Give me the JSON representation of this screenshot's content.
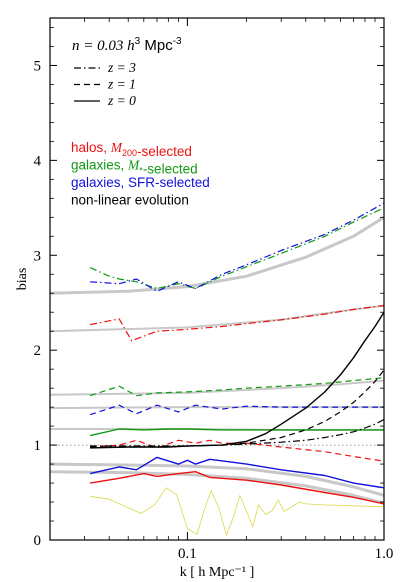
{
  "chart_data": {
    "type": "line",
    "xscale": "log",
    "xlim": [
      0.02,
      1.0
    ],
    "ylim": [
      0,
      5.5
    ],
    "x_ticks": [
      {
        "value": 0.1,
        "label": "0.1"
      },
      {
        "value": 1.0,
        "label": "1.0"
      }
    ],
    "y_ticks": [
      {
        "value": 0,
        "label": "0"
      },
      {
        "value": 1,
        "label": "1"
      },
      {
        "value": 2,
        "label": "2"
      },
      {
        "value": 3,
        "label": "3"
      },
      {
        "value": 4,
        "label": "4"
      },
      {
        "value": 5,
        "label": "5"
      }
    ],
    "xlabel": "k [ h Mpc⁻¹ ]",
    "ylabel": "bias",
    "reference_line": {
      "y": 1.0,
      "style": "dotted",
      "color": "#999999"
    },
    "legend": {
      "density": {
        "prefix": "n = 0.03 ",
        "h_exp": "3",
        "suffix": " Mpc",
        "exp": "-3"
      },
      "linestyles": [
        {
          "style": "dashdot",
          "label": "z = 3"
        },
        {
          "style": "dashed",
          "label": "z = 1"
        },
        {
          "style": "solid",
          "label": "z = 0"
        }
      ],
      "colors": [
        {
          "color": "#ee1111",
          "prefix": "halos, ",
          "ital": "M",
          "sub": "200",
          "suffix": "-selected"
        },
        {
          "color": "#119911",
          "prefix": "galaxies, ",
          "ital": "M",
          "sub": "*",
          "suffix": "-selected"
        },
        {
          "color": "#1111dd",
          "prefix": "galaxies, SFR-selected",
          "ital": "",
          "sub": "",
          "suffix": ""
        },
        {
          "color": "#000000",
          "prefix": "non-linear evolution",
          "ital": "",
          "sub": "",
          "suffix": ""
        }
      ]
    },
    "colors": {
      "halos": "#ee1111",
      "mstar": "#119911",
      "sfr": "#1111dd",
      "nonlinear": "#000000",
      "fit": "#c8c8c8",
      "bao": "#d9d94a"
    },
    "series": [
      {
        "group": "fit",
        "width": 3,
        "style": "solid",
        "x": [
          0.02,
          0.05,
          0.1,
          0.2,
          0.4,
          0.7,
          1.0
        ],
        "y": [
          2.6,
          2.62,
          2.67,
          2.78,
          2.98,
          3.2,
          3.4
        ]
      },
      {
        "group": "fit",
        "width": 2,
        "style": "solid",
        "x": [
          0.02,
          0.1,
          0.3,
          0.6,
          1.0
        ],
        "y": [
          2.2,
          2.24,
          2.32,
          2.41,
          2.47
        ]
      },
      {
        "group": "fit",
        "width": 2,
        "style": "solid",
        "x": [
          0.02,
          0.1,
          0.3,
          0.6,
          1.0
        ],
        "y": [
          1.53,
          1.55,
          1.6,
          1.64,
          1.68
        ]
      },
      {
        "group": "fit",
        "width": 2,
        "style": "solid",
        "x": [
          0.02,
          0.1,
          0.3,
          0.6,
          1.0
        ],
        "y": [
          1.39,
          1.4,
          1.4,
          1.4,
          1.4
        ]
      },
      {
        "group": "fit",
        "width": 2,
        "style": "solid",
        "x": [
          0.02,
          0.1,
          0.3,
          0.6,
          1.0
        ],
        "y": [
          1.17,
          1.17,
          1.16,
          1.16,
          1.16
        ]
      },
      {
        "group": "fit",
        "width": 3,
        "style": "solid",
        "x": [
          0.02,
          0.05,
          0.1,
          0.2,
          0.4,
          0.7,
          1.0
        ],
        "y": [
          0.8,
          0.79,
          0.78,
          0.75,
          0.67,
          0.56,
          0.47
        ]
      },
      {
        "group": "fit",
        "width": 3,
        "style": "solid",
        "x": [
          0.02,
          0.05,
          0.1,
          0.2,
          0.4,
          0.7,
          1.0
        ],
        "y": [
          0.72,
          0.71,
          0.69,
          0.65,
          0.57,
          0.47,
          0.39
        ]
      },
      {
        "group": "bao",
        "width": 0.8,
        "style": "solid",
        "x": [
          0.032,
          0.04,
          0.05,
          0.058,
          0.068,
          0.078,
          0.088,
          0.1,
          0.112,
          0.122,
          0.132,
          0.145,
          0.158,
          0.172,
          0.185,
          0.2,
          0.215,
          0.23,
          0.25,
          0.27,
          0.29,
          0.31,
          0.34,
          0.37,
          0.4,
          0.5,
          0.7,
          1.0
        ],
        "y": [
          0.46,
          0.43,
          0.34,
          0.28,
          0.37,
          0.55,
          0.48,
          0.12,
          0.06,
          0.32,
          0.52,
          0.33,
          0.05,
          0.25,
          0.47,
          0.3,
          0.14,
          0.37,
          0.27,
          0.31,
          0.42,
          0.3,
          0.35,
          0.4,
          0.38,
          0.37,
          0.36,
          0.35
        ]
      },
      {
        "group": "halos",
        "z": 3,
        "width": 1.2,
        "style": "dashdot",
        "x": [
          0.032,
          0.045,
          0.052,
          0.07,
          0.1,
          0.15,
          0.2,
          0.3,
          0.5,
          0.7,
          1.0
        ],
        "y": [
          2.27,
          2.33,
          2.1,
          2.2,
          2.22,
          2.25,
          2.28,
          2.32,
          2.38,
          2.43,
          2.47
        ]
      },
      {
        "group": "halos",
        "z": 1,
        "width": 1.2,
        "style": "dashed",
        "x": [
          0.032,
          0.045,
          0.055,
          0.07,
          0.09,
          0.11,
          0.13,
          0.15,
          0.2,
          0.3,
          0.5,
          0.7,
          1.0
        ],
        "y": [
          0.98,
          1.0,
          1.05,
          0.97,
          1.05,
          1.02,
          1.05,
          1.02,
          1.02,
          0.98,
          0.93,
          0.88,
          0.83
        ]
      },
      {
        "group": "halos",
        "z": 0,
        "width": 1.4,
        "style": "solid",
        "x": [
          0.032,
          0.045,
          0.06,
          0.07,
          0.09,
          0.11,
          0.13,
          0.2,
          0.3,
          0.5,
          0.7,
          1.0
        ],
        "y": [
          0.6,
          0.65,
          0.7,
          0.67,
          0.7,
          0.72,
          0.66,
          0.63,
          0.58,
          0.5,
          0.45,
          0.38
        ]
      },
      {
        "group": "mstar",
        "z": 3,
        "width": 1.2,
        "style": "dashdot",
        "x": [
          0.032,
          0.04,
          0.045,
          0.055,
          0.07,
          0.09,
          0.11,
          0.15,
          0.2,
          0.3,
          0.5,
          0.7,
          1.0
        ],
        "y": [
          2.87,
          2.78,
          2.75,
          2.72,
          2.65,
          2.7,
          2.65,
          2.78,
          2.88,
          3.02,
          3.2,
          3.35,
          3.5
        ]
      },
      {
        "group": "mstar",
        "z": 1,
        "width": 1.2,
        "style": "dashed",
        "x": [
          0.032,
          0.045,
          0.055,
          0.07,
          0.1,
          0.15,
          0.2,
          0.3,
          0.5,
          0.7,
          1.0
        ],
        "y": [
          1.52,
          1.62,
          1.52,
          1.55,
          1.56,
          1.58,
          1.6,
          1.62,
          1.65,
          1.68,
          1.71
        ]
      },
      {
        "group": "mstar",
        "z": 0,
        "width": 1.4,
        "style": "solid",
        "x": [
          0.032,
          0.045,
          0.06,
          0.08,
          0.1,
          0.15,
          0.2,
          0.3,
          0.5,
          0.7,
          1.0
        ],
        "y": [
          1.1,
          1.17,
          1.16,
          1.17,
          1.17,
          1.16,
          1.16,
          1.16,
          1.16,
          1.16,
          1.16
        ]
      },
      {
        "group": "sfr",
        "z": 3,
        "width": 1.2,
        "style": "dashdot",
        "x": [
          0.032,
          0.045,
          0.055,
          0.07,
          0.09,
          0.11,
          0.15,
          0.2,
          0.3,
          0.5,
          0.7,
          1.0
        ],
        "y": [
          2.72,
          2.7,
          2.75,
          2.62,
          2.72,
          2.65,
          2.8,
          2.9,
          3.05,
          3.22,
          3.37,
          3.55
        ]
      },
      {
        "group": "sfr",
        "z": 1,
        "width": 1.2,
        "style": "dashed",
        "x": [
          0.032,
          0.045,
          0.055,
          0.07,
          0.09,
          0.11,
          0.15,
          0.2,
          0.3,
          0.5,
          0.7,
          1.0
        ],
        "y": [
          1.32,
          1.42,
          1.33,
          1.42,
          1.35,
          1.42,
          1.38,
          1.41,
          1.4,
          1.4,
          1.4,
          1.4
        ]
      },
      {
        "group": "sfr",
        "z": 0,
        "width": 1.4,
        "style": "solid",
        "x": [
          0.032,
          0.045,
          0.055,
          0.07,
          0.09,
          0.1,
          0.11,
          0.13,
          0.2,
          0.3,
          0.5,
          0.7,
          1.0
        ],
        "y": [
          0.7,
          0.77,
          0.74,
          0.87,
          0.8,
          0.84,
          0.8,
          0.85,
          0.8,
          0.74,
          0.68,
          0.6,
          0.55
        ]
      },
      {
        "group": "nonlinear",
        "z": 3,
        "width": 1.2,
        "style": "dashdot",
        "x": [
          0.032,
          0.05,
          0.08,
          0.1,
          0.15,
          0.2,
          0.3,
          0.4,
          0.5,
          0.6,
          0.7,
          0.8,
          0.9,
          1.0
        ],
        "y": [
          0.99,
          0.99,
          0.99,
          0.99,
          1.0,
          1.01,
          1.03,
          1.05,
          1.08,
          1.11,
          1.14,
          1.18,
          1.22,
          1.27
        ]
      },
      {
        "group": "nonlinear",
        "z": 1,
        "width": 1.2,
        "style": "dashed",
        "x": [
          0.032,
          0.05,
          0.08,
          0.1,
          0.15,
          0.2,
          0.3,
          0.4,
          0.5,
          0.6,
          0.7,
          0.8,
          0.9,
          1.0
        ],
        "y": [
          0.98,
          0.98,
          0.98,
          0.99,
          1.0,
          1.02,
          1.08,
          1.16,
          1.25,
          1.35,
          1.45,
          1.56,
          1.67,
          1.79
        ]
      },
      {
        "group": "nonlinear",
        "z": 0,
        "width": 1.4,
        "style": "solid",
        "x": [
          0.032,
          0.05,
          0.08,
          0.1,
          0.15,
          0.2,
          0.25,
          0.3,
          0.4,
          0.5,
          0.6,
          0.7,
          0.8,
          0.9,
          1.0
        ],
        "y": [
          0.97,
          0.98,
          0.98,
          0.99,
          1.0,
          1.04,
          1.12,
          1.22,
          1.39,
          1.56,
          1.74,
          1.92,
          2.1,
          2.25,
          2.4
        ]
      }
    ]
  }
}
